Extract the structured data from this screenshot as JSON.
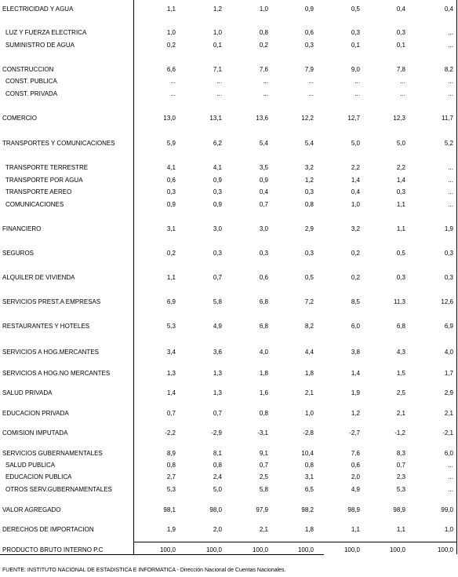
{
  "table": {
    "rows": [
      [
        "ELECTRICIDAD Y AGUA",
        "1,1",
        "1,2",
        "1,0",
        "0,9",
        "0,5",
        "0,4",
        "0,4"
      ],
      [
        "LUZ Y FUERZA ELECTRICA",
        "1,0",
        "1,0",
        "0,8",
        "0,6",
        "0,3",
        "0,3",
        "..."
      ],
      [
        "SUMINISTRO DE AGUA",
        "0,2",
        "0,1",
        "0,2",
        "0,3",
        "0,1",
        "0,1",
        "..."
      ],
      [
        "CONSTRUCCION",
        "6,6",
        "7,1",
        "7,6",
        "7,9",
        "9,0",
        "7,8",
        "8,2"
      ],
      [
        "CONST. PUBLICA",
        "...",
        "...",
        "...",
        "...",
        "...",
        "...",
        "..."
      ],
      [
        "CONST. PRIVADA",
        "...",
        "...",
        "...",
        "...",
        "...",
        "...",
        "..."
      ],
      [
        "COMERCIO",
        "13,0",
        "13,1",
        "13,6",
        "12,2",
        "12,7",
        "12,3",
        "11,7"
      ],
      [
        "TRANSPORTES Y COMUNICACIONES",
        "5,9",
        "6,2",
        "5,4",
        "5,4",
        "5,0",
        "5,0",
        "5,2"
      ],
      [
        "TRANSPORTE TERRESTRE",
        "4,1",
        "4,1",
        "3,5",
        "3,2",
        "2,2",
        "2,2",
        "..."
      ],
      [
        "TRANSPORTE POR AGUA",
        "0,6",
        "0,9",
        "0,9",
        "1,2",
        "1,4",
        "1,4",
        "..."
      ],
      [
        "TRANSPORTE AEREO",
        "0,3",
        "0,3",
        "0,4",
        "0,3",
        "0,4",
        "0,3",
        "..."
      ],
      [
        "COMUNICACIONES",
        "0,9",
        "0,9",
        "0,7",
        "0,8",
        "1,0",
        "1,1",
        "..."
      ],
      [
        "FINANCIERO",
        "3,1",
        "3,0",
        "3,0",
        "2,9",
        "3,2",
        "1,1",
        "1,9"
      ],
      [
        "SEGUROS",
        "0,2",
        "0,3",
        "0,3",
        "0,3",
        "0,2",
        "0,5",
        "0,3"
      ],
      [
        "ALQUILER DE VIVIENDA",
        "1,1",
        "0,7",
        "0,6",
        "0,5",
        "0,2",
        "0,3",
        "0,3"
      ],
      [
        "SERVICIOS PREST.A EMPRESAS",
        "6,9",
        "5,8",
        "6,8",
        "7,2",
        "8,5",
        "11,3",
        "12,6"
      ],
      [
        "RESTAURANTES Y HOTELES",
        "5,3",
        "4,9",
        "6,8",
        "8,2",
        "6,0",
        "6,8",
        "6,9"
      ],
      [
        "SERVICIOS A HOG.MERCANTES",
        "3,4",
        "3,6",
        "4,0",
        "4,4",
        "3,8",
        "4,3",
        "4,0"
      ],
      [
        "SERVICIOS A HOG.NO MERCANTES",
        "1,3",
        "1,3",
        "1,8",
        "1,8",
        "1,4",
        "1,5",
        "1,7"
      ],
      [
        "SALUD PRIVADA",
        "1,4",
        "1,3",
        "1,6",
        "2,1",
        "1,9",
        "2,5",
        "2,9"
      ],
      [
        "EDUCACION PRIVADA",
        "0,7",
        "0,7",
        "0,8",
        "1,0",
        "1,2",
        "2,1",
        "2,1"
      ],
      [
        "COMISION IMPUTADA",
        "-2,2",
        "-2,9",
        "-3,1",
        "-2,8",
        "-2,7",
        "-1,2",
        "-2,1"
      ],
      [
        "SERVICIOS GUBERNAMENTALES",
        "8,9",
        "8,1",
        "9,1",
        "10,4",
        "7,6",
        "8,3",
        "6,0"
      ],
      [
        "SALUD PUBLICA",
        "0,8",
        "0,8",
        "0,7",
        "0,8",
        "0,6",
        "0,7",
        "..."
      ],
      [
        "EDUCACION PUBLICA",
        "2,7",
        "2,4",
        "2,5",
        "3,1",
        "2,0",
        "2,3",
        "..."
      ],
      [
        "OTROS SERV.GUBERNAMENTALES",
        "5,3",
        "5,0",
        "5,8",
        "6,5",
        "4,9",
        "5,3",
        "..."
      ],
      [
        "VALOR AGREGADO",
        "98,1",
        "98,0",
        "97,9",
        "98,2",
        "98,9",
        "98,9",
        "99,0"
      ],
      [
        "DERECHOS DE IMPORTACION",
        "1,9",
        "2,0",
        "2,1",
        "1,8",
        "1,1",
        "1,1",
        "1,0"
      ],
      [
        "PRODUCTO BRUTO INTERNO P.C",
        "100,0",
        "100,0",
        "100,0",
        "100,0",
        "100,0",
        "100,0",
        "100,0"
      ]
    ]
  },
  "footer": "FUENTE: INSTITUTO NACIONAL DE ESTADISTICA E INFORMATICA - Dirección Nacional de Cuentas Nacionales."
}
